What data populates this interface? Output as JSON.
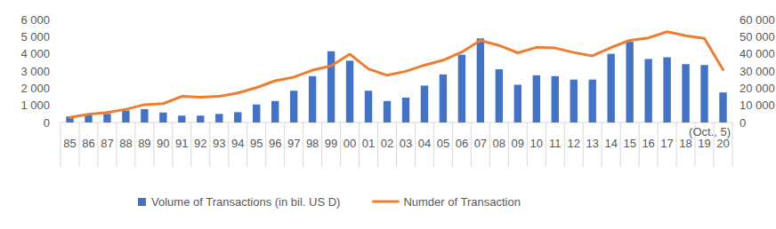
{
  "chart_data": {
    "type": "bar",
    "categories": [
      "85",
      "86",
      "87",
      "88",
      "89",
      "90",
      "91",
      "92",
      "93",
      "94",
      "95",
      "96",
      "97",
      "98",
      "99",
      "00",
      "01",
      "02",
      "03",
      "04",
      "05",
      "06",
      "07",
      "08",
      "09",
      "10",
      "11",
      "12",
      "13",
      "14",
      "15",
      "16",
      "17",
      "18",
      "19",
      "20"
    ],
    "annotation": "(Oct., 5)",
    "series": [
      {
        "name": "Volume of Transactions (in bil. US D)",
        "type": "bar",
        "color": "#4472c4",
        "values": [
          350,
          420,
          500,
          700,
          780,
          580,
          400,
          400,
          500,
          600,
          1050,
          1250,
          1850,
          2700,
          4150,
          3600,
          1850,
          1250,
          1450,
          2150,
          2800,
          3950,
          4900,
          3100,
          2200,
          2750,
          2700,
          2500,
          2500,
          4000,
          4700,
          3700,
          3800,
          3400,
          3350,
          1750
        ]
      },
      {
        "name": "Numder of Transaction",
        "type": "line",
        "axis": "y2",
        "color": "#ed7d31",
        "values": [
          3000,
          4800,
          5800,
          7700,
          10400,
          11000,
          15200,
          14700,
          15200,
          17200,
          20300,
          24300,
          26400,
          30500,
          33000,
          39800,
          31200,
          27500,
          29800,
          33400,
          36300,
          41000,
          47800,
          44900,
          40600,
          43800,
          43400,
          40800,
          38800,
          43700,
          47900,
          49300,
          52900,
          50600,
          49000,
          30800
        ]
      }
    ],
    "ylim": [
      0,
      6000
    ],
    "yticks": [
      0,
      {
        "value": 1000,
        "label": "1 000"
      },
      {
        "value": 2000,
        "label": "2 000"
      },
      {
        "value": 3000,
        "label": "3 000"
      },
      {
        "value": 4000,
        "label": "4 000"
      },
      {
        "value": 5000,
        "label": "5 000"
      },
      {
        "value": 6000,
        "label": "6 000"
      }
    ],
    "y2lim": [
      0,
      60000
    ],
    "y2ticks": [
      0,
      {
        "value": 10000,
        "label": "10 000"
      },
      {
        "value": 20000,
        "label": "20 000"
      },
      {
        "value": 30000,
        "label": "30 000"
      },
      {
        "value": 40000,
        "label": "40 000"
      },
      {
        "value": 50000,
        "label": "50 000"
      },
      {
        "value": 60000,
        "label": "60 000"
      }
    ],
    "grid": false,
    "legend": "bottom"
  }
}
